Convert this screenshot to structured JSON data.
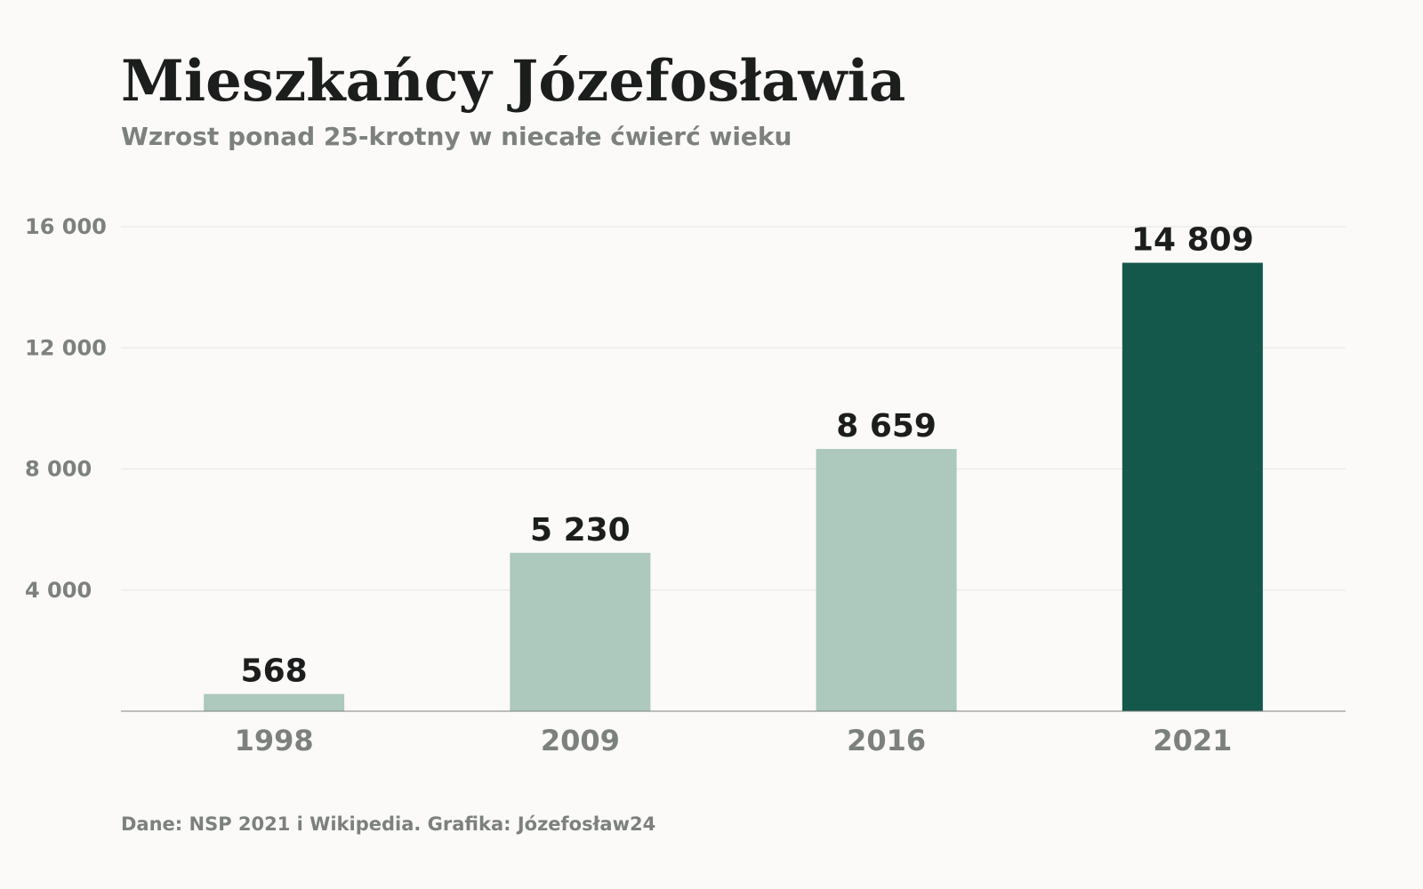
{
  "title": "Mieszkańcy Józefosławia",
  "subtitle": "Wzrost ponad 25-krotny w niecałe ćwierć wieku",
  "source": "Dane: NSP 2021 i Wikipedia. Grafika: Józefosław24",
  "colors": {
    "background": "#fbfaf8",
    "bar_default": "#adc8bd",
    "bar_highlight": "#14574b",
    "text_dark": "#1b1e1c",
    "text_muted": "#7c817e",
    "gridline": "#e4e4e0",
    "baseline": "#7c817e"
  },
  "chart_data": {
    "type": "bar",
    "title": "Mieszkańcy Józefosławia",
    "subtitle": "Wzrost ponad 25-krotny w niecałe ćwierć wieku",
    "categories": [
      "1998",
      "2009",
      "2016",
      "2021"
    ],
    "values": [
      568,
      5230,
      8659,
      14809
    ],
    "value_labels": [
      "568",
      "5 230",
      "8 659",
      "14 809"
    ],
    "highlight_index": 3,
    "xlabel": "",
    "ylabel": "",
    "ylim": [
      0,
      16000
    ],
    "yticks": [
      4000,
      8000,
      12000,
      16000
    ],
    "ytick_labels": [
      "4 000",
      "8 000",
      "12 000",
      "16 000"
    ],
    "grid": true,
    "legend": "none"
  }
}
